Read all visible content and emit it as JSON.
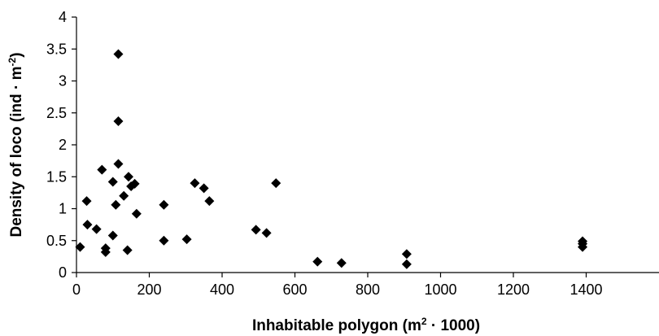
{
  "chart_data": {
    "type": "scatter",
    "xlabel": "Inhabitable polygon (m² · 1000)",
    "ylabel": "Density of loco (ind · m⁻²)",
    "xlim": [
      0,
      1600
    ],
    "ylim": [
      0,
      4
    ],
    "xticks": [
      "0",
      "200",
      "400",
      "600",
      "800",
      "1000",
      "1200",
      "1400"
    ],
    "yticks": [
      "0",
      "0.5",
      "1",
      "1.5",
      "2",
      "2.5",
      "3",
      "3.5",
      "4"
    ],
    "grid": false,
    "marker": "diamond",
    "marker_color": "#000000",
    "series": [
      {
        "points": [
          [
            10,
            0.4
          ],
          [
            28,
            1.12
          ],
          [
            30,
            0.75
          ],
          [
            55,
            0.68
          ],
          [
            70,
            1.61
          ],
          [
            80,
            0.38
          ],
          [
            80,
            0.32
          ],
          [
            100,
            0.58
          ],
          [
            100,
            1.42
          ],
          [
            108,
            1.06
          ],
          [
            115,
            3.42
          ],
          [
            115,
            2.37
          ],
          [
            115,
            1.7
          ],
          [
            130,
            1.2
          ],
          [
            140,
            0.35
          ],
          [
            143,
            1.5
          ],
          [
            150,
            1.35
          ],
          [
            160,
            1.39
          ],
          [
            165,
            0.92
          ],
          [
            240,
            1.06
          ],
          [
            240,
            0.5
          ],
          [
            303,
            0.52
          ],
          [
            325,
            1.4
          ],
          [
            350,
            1.32
          ],
          [
            365,
            1.12
          ],
          [
            493,
            0.67
          ],
          [
            522,
            0.62
          ],
          [
            548,
            1.4
          ],
          [
            662,
            0.17
          ],
          [
            728,
            0.15
          ],
          [
            907,
            0.29
          ],
          [
            907,
            0.13
          ],
          [
            1390,
            0.49
          ],
          [
            1390,
            0.45
          ],
          [
            1390,
            0.4
          ]
        ]
      }
    ]
  }
}
